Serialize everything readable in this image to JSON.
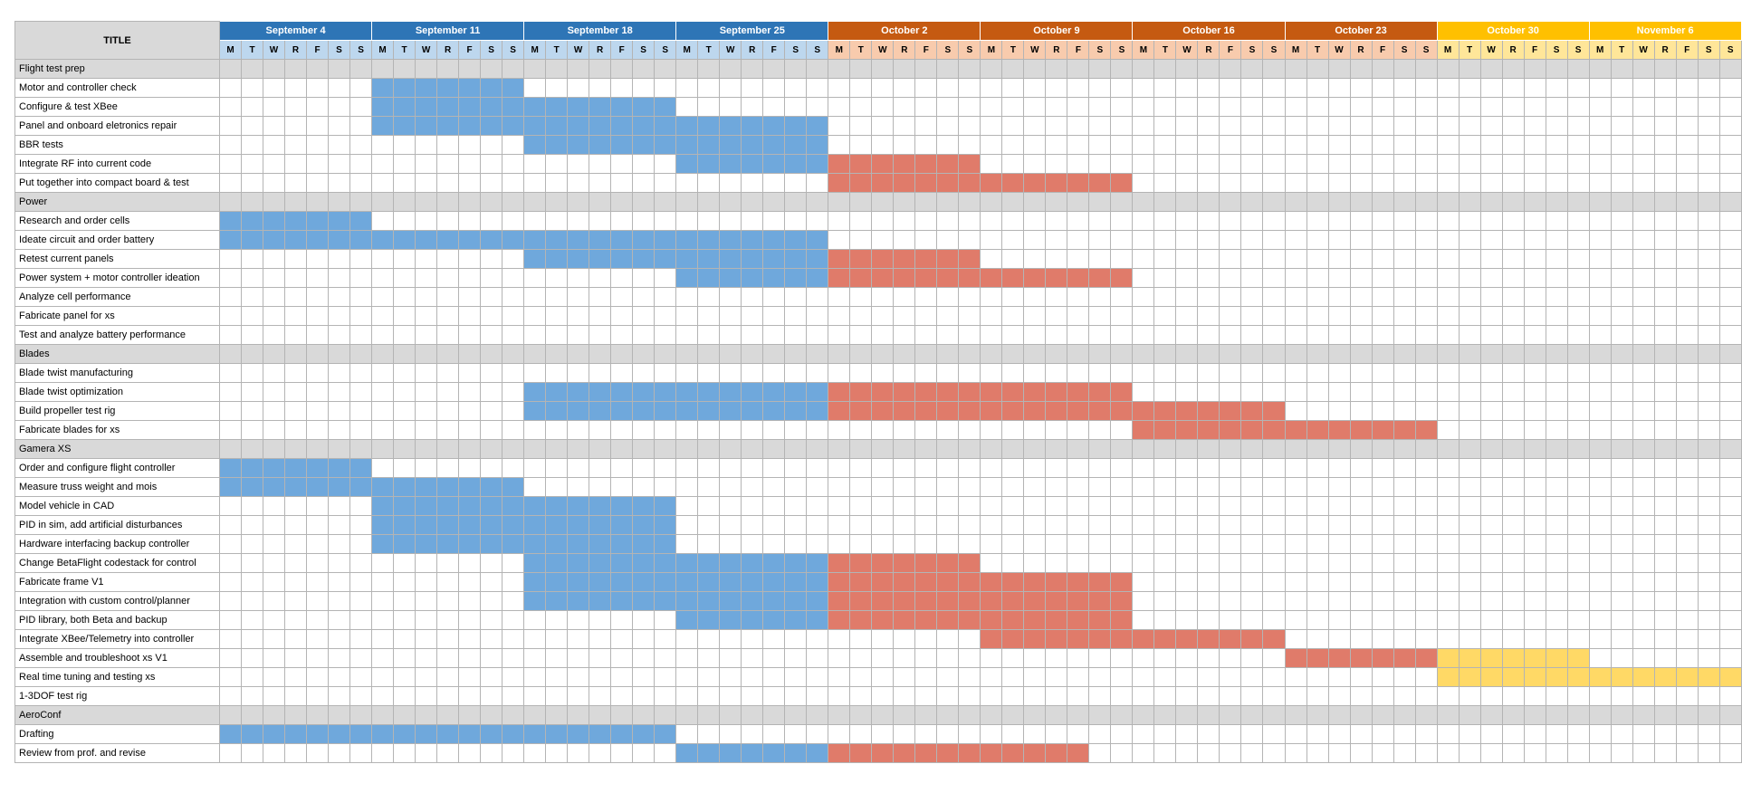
{
  "title_label": "TITLE",
  "colors": {
    "blue": "#2e75b6",
    "blue_light": "#bdd7ee",
    "blue_bar": "#6fa8dc",
    "orange": "#c55a11",
    "orange_light": "#f8cbad",
    "orange_bar": "#e07b6a",
    "yellow": "#ffc000",
    "yellow_light": "#ffe699",
    "yellow_bar": "#ffd966",
    "section_bg": "#d9d9d9"
  },
  "weeks": [
    {
      "label": "September 4",
      "color": "blue"
    },
    {
      "label": "September 11",
      "color": "blue"
    },
    {
      "label": "September 18",
      "color": "blue"
    },
    {
      "label": "September 25",
      "color": "blue"
    },
    {
      "label": "October 2",
      "color": "orange"
    },
    {
      "label": "October 9",
      "color": "orange"
    },
    {
      "label": "October 16",
      "color": "orange"
    },
    {
      "label": "October 23",
      "color": "orange"
    },
    {
      "label": "October 30",
      "color": "yellow"
    },
    {
      "label": "November 6",
      "color": "yellow"
    }
  ],
  "day_letters": [
    "M",
    "T",
    "W",
    "R",
    "F",
    "S",
    "S"
  ],
  "rows": [
    {
      "type": "section",
      "label": "Flight test prep"
    },
    {
      "type": "task",
      "label": "Motor and controller check",
      "start_week": 2,
      "end_week": 2
    },
    {
      "type": "task",
      "label": "Configure & test XBee",
      "start_week": 2,
      "end_week": 3
    },
    {
      "type": "task",
      "label": "Panel and onboard eletronics repair",
      "start_week": 2,
      "end_week": 4
    },
    {
      "type": "task",
      "label": "BBR tests",
      "start_week": 3,
      "end_week": 4
    },
    {
      "type": "task",
      "label": "Integrate RF into current code",
      "start_week": 4,
      "end_week": 5
    },
    {
      "type": "task",
      "label": "Put together into compact board & test",
      "start_week": 5,
      "end_week": 6
    },
    {
      "type": "section",
      "label": "Power"
    },
    {
      "type": "task",
      "label": "Research and order cells",
      "start_week": 1,
      "end_week": 1
    },
    {
      "type": "task",
      "label": "Ideate circuit and order battery",
      "start_week": 1,
      "end_week": 4
    },
    {
      "type": "task",
      "label": "Retest current panels",
      "start_week": 3,
      "end_week": 5
    },
    {
      "type": "task",
      "label": "Power system + motor controller ideation",
      "start_week": 4,
      "end_week": 6
    },
    {
      "type": "task",
      "label": "Analyze cell performance"
    },
    {
      "type": "task",
      "label": "Fabricate panel for xs"
    },
    {
      "type": "task",
      "label": "Test and analyze battery performance"
    },
    {
      "type": "section",
      "label": "Blades"
    },
    {
      "type": "task",
      "label": "Blade twist manufacturing"
    },
    {
      "type": "task",
      "label": "Blade twist optimization",
      "start_week": 3,
      "end_week": 6
    },
    {
      "type": "task",
      "label": "Build propeller test rig",
      "start_week": 3,
      "end_week": 7
    },
    {
      "type": "task",
      "label": "Fabricate blades for xs",
      "start_week": 7,
      "end_week": 8
    },
    {
      "type": "section",
      "label": "Gamera XS"
    },
    {
      "type": "task",
      "label": "Order and configure flight controller",
      "start_week": 1,
      "end_week": 1
    },
    {
      "type": "task",
      "label": "Measure truss weight and mois",
      "start_week": 1,
      "end_week": 2
    },
    {
      "type": "task",
      "label": "Model vehicle in CAD",
      "start_week": 2,
      "end_week": 3
    },
    {
      "type": "task",
      "label": "PID in sim, add artificial disturbances",
      "start_week": 2,
      "end_week": 3
    },
    {
      "type": "task",
      "label": "Hardware interfacing backup controller",
      "start_week": 2,
      "end_week": 3
    },
    {
      "type": "task",
      "label": "Change BetaFlight codestack for control",
      "start_week": 3,
      "end_week": 5
    },
    {
      "type": "task",
      "label": "Fabricate frame V1",
      "start_week": 3,
      "end_week": 6
    },
    {
      "type": "task",
      "label": "Integration with custom control/planner",
      "start_week": 3,
      "end_week": 6
    },
    {
      "type": "task",
      "label": "PID library, both Beta and backup",
      "start_week": 4,
      "end_week": 6
    },
    {
      "type": "task",
      "label": "Integrate XBee/Telemetry into controller",
      "start_week": 6,
      "end_week": 7
    },
    {
      "type": "task",
      "label": "Assemble and troubleshoot xs V1",
      "start_week": 8,
      "end_week": 9
    },
    {
      "type": "task",
      "label": "Real time tuning and testing xs",
      "start_week": 9,
      "end_week": 10
    },
    {
      "type": "task",
      "label": "1-3DOF test rig"
    },
    {
      "type": "section",
      "label": "AeroConf"
    },
    {
      "type": "task",
      "label": "Drafting",
      "start_week": 1,
      "end_week": 3
    },
    {
      "type": "task",
      "label": "Review from prof. and revise",
      "start_week": 4,
      "end_week": 5.7
    }
  ]
}
